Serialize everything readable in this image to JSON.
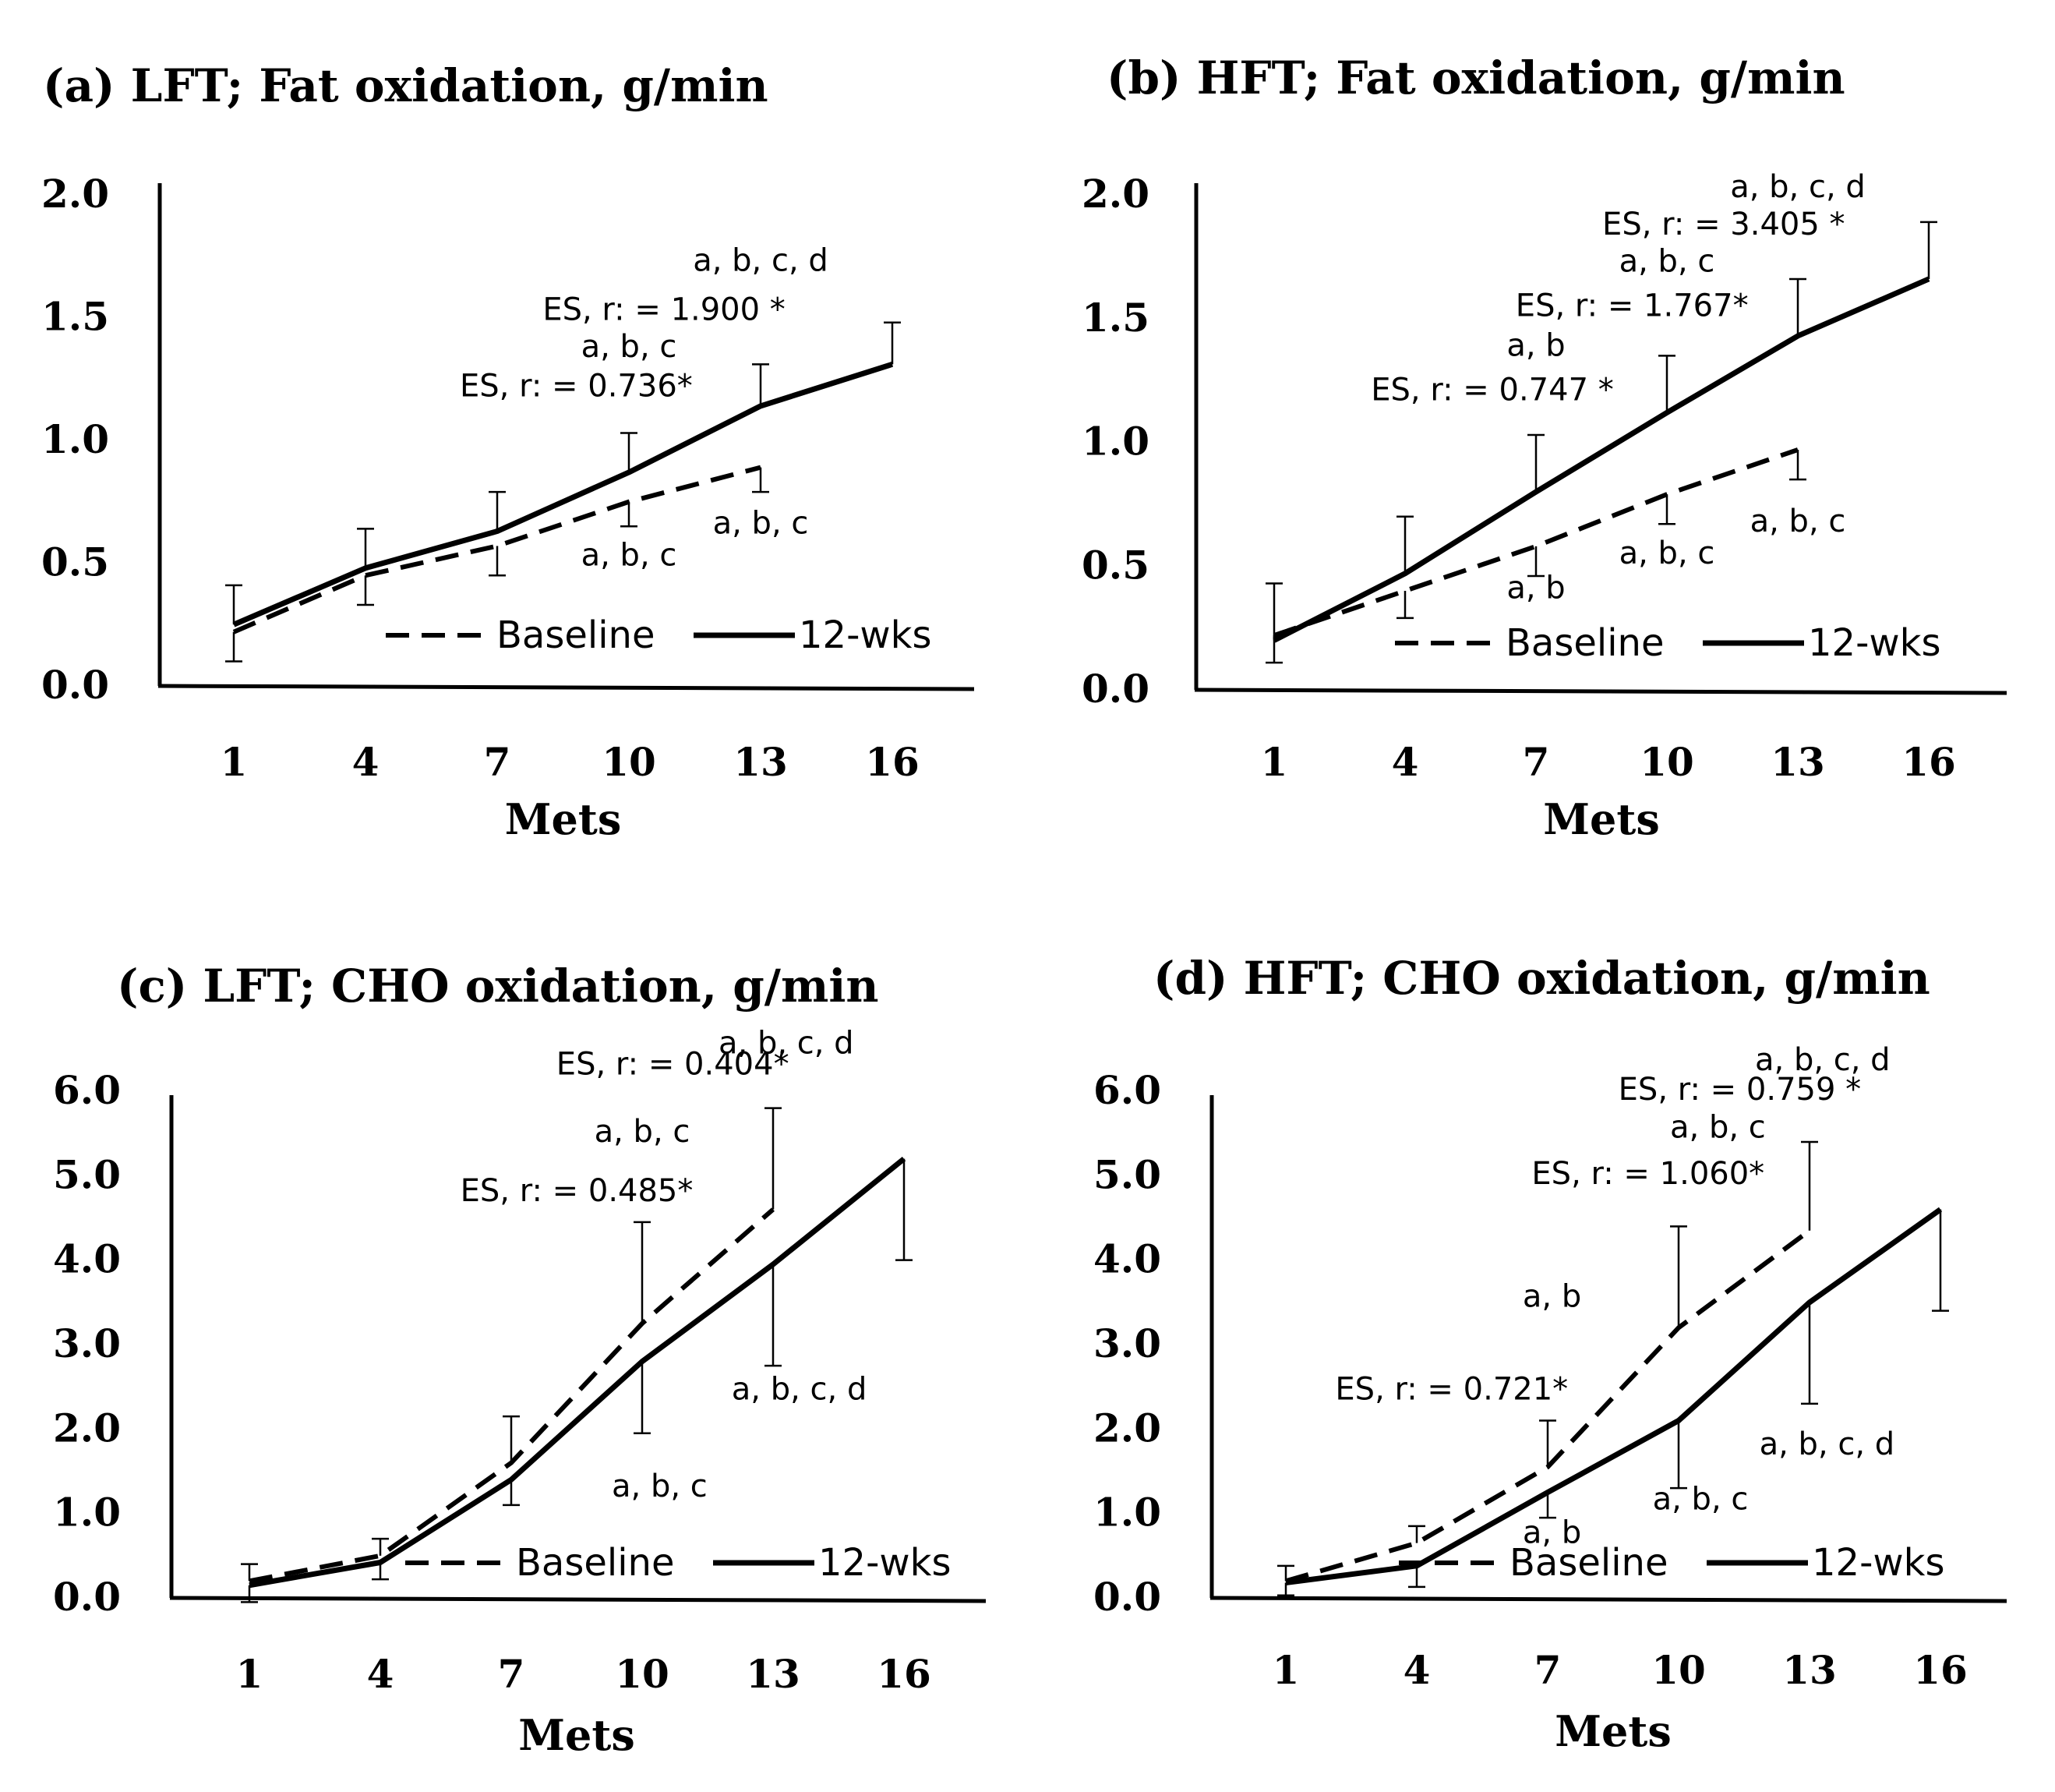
{
  "chart_data": [
    {
      "type": "line",
      "title": "(a) LFT; Fat oxidation,  g/min",
      "xlabel": "Mets",
      "ylabel": "",
      "categories": [
        "1",
        "4",
        "7",
        "10",
        "13",
        "16"
      ],
      "ylim": [
        0,
        2.0
      ],
      "yticks": [
        "0.0",
        "0.5",
        "1.0",
        "1.5",
        "2.0"
      ],
      "series": [
        {
          "name": "Baseline",
          "style": "dashed",
          "values": [
            0.22,
            0.45,
            0.57,
            0.75,
            0.89,
            null
          ],
          "errors": [
            0.12,
            0.12,
            0.12,
            0.1,
            0.1,
            null
          ],
          "error_dir": "down"
        },
        {
          "name": "12-wks",
          "style": "solid",
          "values": [
            0.25,
            0.48,
            0.63,
            0.87,
            1.14,
            1.31
          ],
          "errors": [
            0.16,
            0.16,
            0.16,
            0.16,
            0.17,
            0.17
          ],
          "error_dir": "up"
        }
      ],
      "annotations": [
        {
          "text": "a, b, c, d",
          "x": 13,
          "y": 1.69
        },
        {
          "text": "ES, r: = 1.900 *",
          "x": 10.8,
          "y": 1.49
        },
        {
          "text": "a, b, c",
          "x": 10,
          "y": 1.34
        },
        {
          "text": "ES, r: = 0.736*",
          "x": 8.8,
          "y": 1.18
        },
        {
          "text": "a, b, c",
          "x": 10,
          "y": 0.49
        },
        {
          "text": "a, b, c",
          "x": 13,
          "y": 0.62
        }
      ],
      "legend": [
        "Baseline",
        "12-wks"
      ]
    },
    {
      "type": "line",
      "title": "(b) HFT; Fat oxidation,  g/min",
      "xlabel": "Mets",
      "ylabel": "",
      "categories": [
        "1",
        "4",
        "7",
        "10",
        "13",
        "16"
      ],
      "ylim": [
        0,
        2.0
      ],
      "yticks": [
        "0.0",
        "0.5",
        "1.0",
        "1.5",
        "2.0"
      ],
      "series": [
        {
          "name": "Baseline",
          "style": "dashed",
          "values": [
            0.22,
            0.4,
            0.58,
            0.79,
            0.97,
            null
          ],
          "errors": [
            0.11,
            0.11,
            0.12,
            0.12,
            0.12,
            null
          ],
          "error_dir": "down"
        },
        {
          "name": "12-wks",
          "style": "solid",
          "values": [
            0.2,
            0.47,
            0.8,
            1.12,
            1.43,
            1.66
          ],
          "errors": [
            0.23,
            0.23,
            0.23,
            0.23,
            0.23,
            0.23
          ],
          "error_dir": "up"
        }
      ],
      "annotations": [
        {
          "text": "a, b, c, d",
          "x": 13,
          "y": 1.99
        },
        {
          "text": "ES, r: = 3.405 *",
          "x": 11.3,
          "y": 1.84
        },
        {
          "text": "a, b, c",
          "x": 10,
          "y": 1.69
        },
        {
          "text": "ES, r: = 1.767*",
          "x": 9.2,
          "y": 1.51
        },
        {
          "text": "a, b",
          "x": 7,
          "y": 1.35
        },
        {
          "text": "ES, r: = 0.747 *",
          "x": 6,
          "y": 1.17
        },
        {
          "text": "a, b",
          "x": 7,
          "y": 0.37
        },
        {
          "text": "a, b, c",
          "x": 10,
          "y": 0.51
        },
        {
          "text": "a, b, c",
          "x": 13,
          "y": 0.64
        }
      ],
      "legend": [
        "Baseline",
        "12-wks"
      ]
    },
    {
      "type": "line",
      "title": "(c) LFT; CHO oxidation,  g/min",
      "xlabel": "Mets",
      "ylabel": "",
      "categories": [
        "1",
        "4",
        "7",
        "10",
        "13",
        "16"
      ],
      "ylim": [
        0,
        6.0
      ],
      "yticks": [
        "0.0",
        "1.0",
        "2.0",
        "3.0",
        "4.0",
        "5.0",
        "6.0"
      ],
      "series": [
        {
          "name": "Baseline",
          "style": "dashed",
          "values": [
            0.2,
            0.5,
            1.6,
            3.25,
            4.6,
            null
          ],
          "errors": [
            0.2,
            0.2,
            0.55,
            1.2,
            1.2,
            null
          ],
          "error_dir": "up"
        },
        {
          "name": "12-wks",
          "style": "solid",
          "values": [
            0.15,
            0.42,
            1.4,
            2.8,
            3.95,
            5.2
          ],
          "errors": [
            0.2,
            0.2,
            0.3,
            0.85,
            1.2,
            1.2
          ],
          "error_dir": "down"
        }
      ],
      "annotations": [
        {
          "text": "a, b, c, d",
          "x": 13.3,
          "y": 6.45
        },
        {
          "text": "ES, r: = 0.404*",
          "x": 10.7,
          "y": 6.2
        },
        {
          "text": "a, b, c",
          "x": 10,
          "y": 5.4
        },
        {
          "text": "ES, r: = 0.485*",
          "x": 8.5,
          "y": 4.7
        },
        {
          "text": "a, b, c, d",
          "x": 13.6,
          "y": 2.35
        },
        {
          "text": "a, b, c",
          "x": 10.4,
          "y": 1.2
        }
      ],
      "legend": [
        "Baseline",
        "12-wks"
      ]
    },
    {
      "type": "line",
      "title": "(d) HFT; CHO oxidation,  g/min",
      "xlabel": "Mets",
      "ylabel": "",
      "categories": [
        "1",
        "4",
        "7",
        "10",
        "13",
        "16"
      ],
      "ylim": [
        0,
        6.0
      ],
      "yticks": [
        "0.0",
        "1.0",
        "2.0",
        "3.0",
        "4.0",
        "5.0",
        "6.0"
      ],
      "series": [
        {
          "name": "Baseline",
          "style": "dashed",
          "values": [
            0.2,
            0.65,
            1.55,
            3.2,
            4.35,
            null
          ],
          "errors": [
            0.18,
            0.2,
            0.55,
            1.2,
            1.05,
            null
          ],
          "error_dir": "up"
        },
        {
          "name": "12-wks",
          "style": "solid",
          "values": [
            0.18,
            0.38,
            1.25,
            2.1,
            3.5,
            4.6
          ],
          "errors": [
            0.15,
            0.25,
            0.3,
            0.8,
            1.2,
            1.2
          ],
          "error_dir": "down"
        }
      ],
      "annotations": [
        {
          "text": "a, b, c, d",
          "x": 13.3,
          "y": 6.25
        },
        {
          "text": "ES, r: = 0.759 *",
          "x": 11.4,
          "y": 5.9
        },
        {
          "text": "a, b, c",
          "x": 10.9,
          "y": 5.45
        },
        {
          "text": "ES, r: = 1.060*",
          "x": 9.3,
          "y": 4.9
        },
        {
          "text": "a, b",
          "x": 7.1,
          "y": 3.45
        },
        {
          "text": "ES, r: = 0.721*",
          "x": 4.8,
          "y": 2.35
        },
        {
          "text": "a, b, c, d",
          "x": 13.4,
          "y": 1.7
        },
        {
          "text": "a, b, c",
          "x": 10.5,
          "y": 1.05
        },
        {
          "text": "a, b",
          "x": 7.1,
          "y": 0.65
        }
      ],
      "legend": [
        "Baseline",
        "12-wks"
      ]
    }
  ]
}
